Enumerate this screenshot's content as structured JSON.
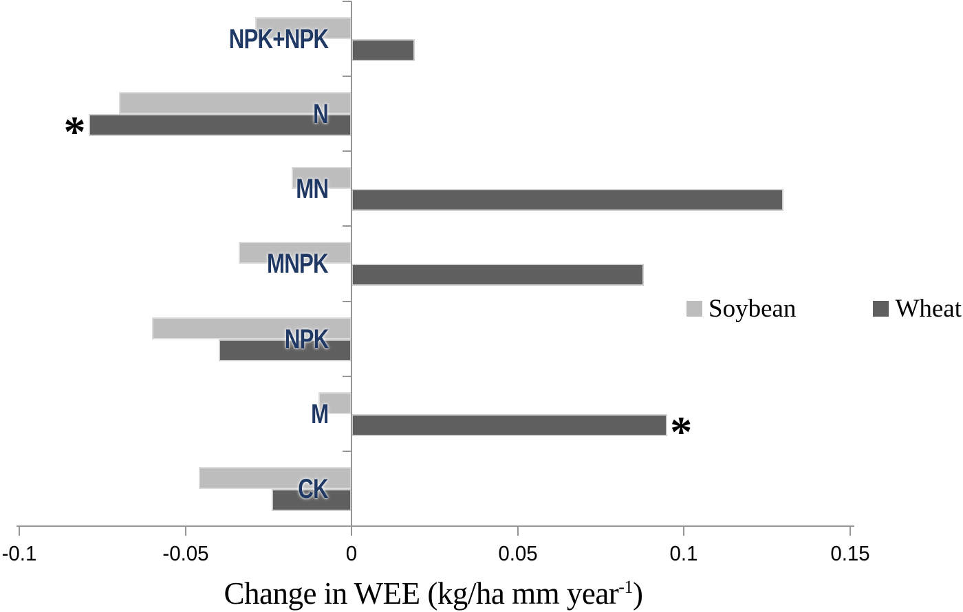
{
  "chart_data": {
    "type": "bar",
    "orientation": "horizontal",
    "title": "",
    "xlabel": "Change in WEE (kg/ha mm year-1)",
    "xlabel_parts": {
      "main": "Change in WEE (kg/ha mm year",
      "sup": "-1",
      "close": ")"
    },
    "ylabel": "",
    "categories": [
      "NPK+NPK",
      "N",
      "MN",
      "MNPK",
      "NPK",
      "M",
      "CK"
    ],
    "series": [
      {
        "name": "Soybean",
        "color": "#bdbdbd",
        "values": [
          -0.029,
          -0.07,
          -0.018,
          -0.034,
          -0.06,
          -0.01,
          -0.046
        ]
      },
      {
        "name": "Wheat",
        "color": "#5f5f5f",
        "values": [
          0.019,
          -0.079,
          0.13,
          0.088,
          -0.04,
          0.095,
          -0.024
        ]
      }
    ],
    "annotations": [
      {
        "symbol": "*",
        "category": "N",
        "series": "Wheat",
        "side": "left"
      },
      {
        "symbol": "*",
        "category": "M",
        "series": "Wheat",
        "side": "right"
      }
    ],
    "xlim": [
      -0.1,
      0.15
    ],
    "x_ticks": [
      -0.1,
      -0.05,
      0,
      0.05,
      0.1,
      0.15
    ],
    "x_tick_labels": [
      "-0.1",
      "-0.05",
      "0",
      "0.05",
      "0.1",
      "0.15"
    ],
    "grid": false,
    "legend": {
      "position": "middle-right",
      "entries": [
        "Soybean",
        "Wheat"
      ]
    },
    "colors": {
      "category_label": "#1f3864",
      "axis_line": "#969696",
      "tick_label": "#000000",
      "soybean_bar": "#bdbdbd",
      "wheat_bar": "#5f5f5f"
    }
  }
}
